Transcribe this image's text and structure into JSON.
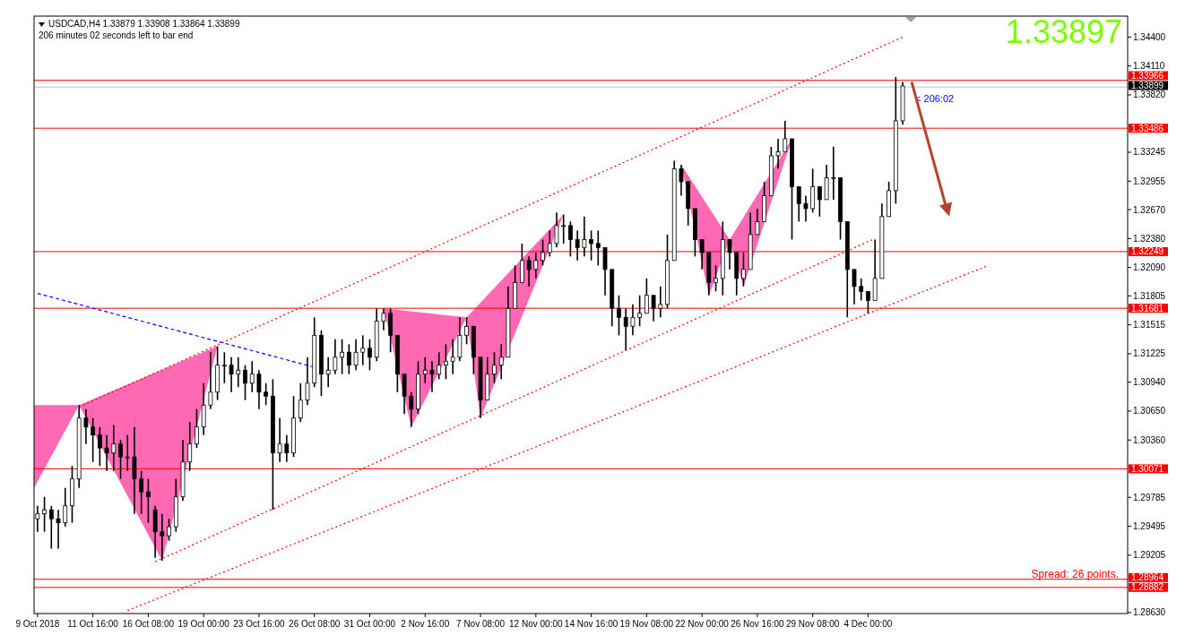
{
  "chart_data": {
    "type": "candlestick",
    "title": "USDCAD,H4  1.33879 1.33908 1.33864 1.33899",
    "subtitle": "206 minutes 02 seconds left to bar end",
    "annotations": [
      "1.33897",
      "< 206:02",
      "Spread: 26 points."
    ],
    "categories": [
      "9 Oct 2018",
      null,
      null,
      null,
      null,
      null,
      null,
      null,
      "11 Oct 16:00",
      null,
      null,
      null,
      null,
      null,
      null,
      null,
      "16 Oct 08:00",
      null,
      null,
      null,
      null,
      null,
      null,
      null,
      "19 Oct 00:00",
      null,
      null,
      null,
      null,
      null,
      null,
      null,
      "23 Oct 16:00",
      null,
      null,
      null,
      null,
      null,
      null,
      null,
      "26 Oct 08:00",
      null,
      null,
      null,
      null,
      null,
      null,
      null,
      "31 Oct 00:00",
      null,
      null,
      null,
      null,
      null,
      null,
      null,
      "2 Nov 16:00",
      null,
      null,
      null,
      null,
      null,
      null,
      null,
      "7 Nov 08:00",
      null,
      null,
      null,
      null,
      null,
      null,
      null,
      "12 Nov 00:00",
      null,
      null,
      null,
      null,
      null,
      null,
      null,
      "14 Nov 16:00",
      null,
      null,
      null,
      null,
      null,
      null,
      null,
      "19 Nov 08:00",
      null,
      null,
      null,
      null,
      null,
      null,
      null,
      "22 Nov 00:00",
      null,
      null,
      null,
      null,
      null,
      null,
      null,
      "26 Nov 16:00",
      null,
      null,
      null,
      null,
      null,
      null,
      null,
      "29 Nov 08:00",
      null,
      null,
      null,
      null,
      null,
      null,
      null,
      "4 Dec 00:00",
      null,
      null,
      null,
      null,
      null,
      null,
      null,
      null,
      null,
      null,
      null,
      null,
      null,
      null,
      null,
      null,
      null,
      null,
      null,
      null,
      null,
      null,
      null,
      null,
      null,
      null,
      null,
      null,
      null,
      null,
      null,
      null,
      null,
      null,
      null,
      null,
      null
    ],
    "ohlc": [
      [
        1.2957,
        1.297,
        1.2944,
        1.2962
      ],
      [
        1.2962,
        1.2979,
        1.2944,
        1.2966
      ],
      [
        1.2966,
        1.297,
        1.2927,
        1.2957
      ],
      [
        1.2957,
        1.2966,
        1.2927,
        1.2953
      ],
      [
        1.2953,
        1.2988,
        1.2949,
        1.297
      ],
      [
        1.297,
        1.301,
        1.2953,
        1.2997
      ],
      [
        1.2997,
        1.3071,
        1.2988,
        1.3058
      ],
      [
        1.3058,
        1.3067,
        1.3032,
        1.3049
      ],
      [
        1.3049,
        1.3058,
        1.3014,
        1.3041
      ],
      [
        1.3041,
        1.3049,
        1.301,
        1.3028
      ],
      [
        1.3028,
        1.3041,
        1.3005,
        1.3023
      ],
      [
        1.3023,
        1.3051,
        1.3005,
        1.3032
      ],
      [
        1.3032,
        1.3036,
        1.2997,
        1.3019
      ],
      [
        1.3019,
        1.3041,
        1.3005,
        1.3019
      ],
      [
        1.3019,
        1.3049,
        1.2962,
        1.2997
      ],
      [
        1.2997,
        1.3005,
        1.2962,
        1.2984
      ],
      [
        1.2984,
        1.2997,
        1.2953,
        1.2979
      ],
      [
        1.2966,
        1.297,
        1.2918,
        1.2944
      ],
      [
        1.2944,
        1.2962,
        1.2915,
        1.294
      ],
      [
        1.294,
        1.2957,
        1.2935,
        1.2949
      ],
      [
        1.2949,
        1.2997,
        1.2944,
        1.2979
      ],
      [
        1.2979,
        1.3036,
        1.2975,
        1.3014
      ],
      [
        1.3014,
        1.3054,
        1.3005,
        1.3032
      ],
      [
        1.3032,
        1.3067,
        1.3028,
        1.3049
      ],
      [
        1.3049,
        1.3093,
        1.3041,
        1.3071
      ],
      [
        1.3071,
        1.3124,
        1.3067,
        1.3084
      ],
      [
        1.3084,
        1.313,
        1.3076,
        1.3111
      ],
      [
        1.3111,
        1.3124,
        1.3093,
        1.3111
      ],
      [
        1.3111,
        1.3119,
        1.3084,
        1.3102
      ],
      [
        1.3102,
        1.3119,
        1.3089,
        1.3106
      ],
      [
        1.3106,
        1.3111,
        1.3076,
        1.3093
      ],
      [
        1.3093,
        1.3115,
        1.3084,
        1.3102
      ],
      [
        1.3102,
        1.3106,
        1.3067,
        1.3084
      ],
      [
        1.3084,
        1.3093,
        1.3071,
        1.308
      ],
      [
        1.308,
        1.3097,
        1.2966,
        1.3023
      ],
      [
        1.3023,
        1.3058,
        1.3014,
        1.3032
      ],
      [
        1.3032,
        1.3041,
        1.3014,
        1.3023
      ],
      [
        1.3023,
        1.308,
        1.3019,
        1.3058
      ],
      [
        1.3058,
        1.3093,
        1.3054,
        1.3076
      ],
      [
        1.3076,
        1.3119,
        1.3071,
        1.3093
      ],
      [
        1.3093,
        1.3159,
        1.3089,
        1.3141
      ],
      [
        1.3141,
        1.3146,
        1.308,
        1.3102
      ],
      [
        1.3102,
        1.3119,
        1.3089,
        1.3106
      ],
      [
        1.3106,
        1.3137,
        1.3102,
        1.3119
      ],
      [
        1.3119,
        1.3137,
        1.3102,
        1.3124
      ],
      [
        1.3124,
        1.3132,
        1.3102,
        1.3111
      ],
      [
        1.3111,
        1.3137,
        1.3106,
        1.3124
      ],
      [
        1.3124,
        1.3141,
        1.3111,
        1.3128
      ],
      [
        1.3128,
        1.3137,
        1.3106,
        1.3119
      ],
      [
        1.3119,
        1.3168,
        1.3115,
        1.3155
      ],
      [
        1.3155,
        1.3168,
        1.3146,
        1.3163
      ],
      [
        1.3163,
        1.3168,
        1.3124,
        1.3141
      ],
      [
        1.3141,
        1.3141,
        1.3084,
        1.3102
      ],
      [
        1.3102,
        1.3102,
        1.3062,
        1.308
      ],
      [
        1.308,
        1.3084,
        1.3049,
        1.3067
      ],
      [
        1.3067,
        1.3115,
        1.3062,
        1.3102
      ],
      [
        1.3102,
        1.3119,
        1.3093,
        1.3106
      ],
      [
        1.3106,
        1.3115,
        1.3084,
        1.3102
      ],
      [
        1.3102,
        1.3124,
        1.3097,
        1.3111
      ],
      [
        1.3111,
        1.3132,
        1.3097,
        1.3115
      ],
      [
        1.3115,
        1.3137,
        1.3102,
        1.3119
      ],
      [
        1.3119,
        1.3159,
        1.3115,
        1.3141
      ],
      [
        1.3141,
        1.3159,
        1.3132,
        1.315
      ],
      [
        1.315,
        1.315,
        1.3102,
        1.3119
      ],
      [
        1.3119,
        1.3119,
        1.3058,
        1.3076
      ],
      [
        1.3076,
        1.3119,
        1.3076,
        1.3102
      ],
      [
        1.3102,
        1.3124,
        1.3093,
        1.3111
      ],
      [
        1.3111,
        1.3132,
        1.3097,
        1.3119
      ],
      [
        1.3119,
        1.319,
        1.3119,
        1.3168
      ],
      [
        1.3168,
        1.3211,
        1.3168,
        1.3194
      ],
      [
        1.3194,
        1.3233,
        1.3194,
        1.3216
      ],
      [
        1.3216,
        1.322,
        1.319,
        1.3207
      ],
      [
        1.3207,
        1.3224,
        1.3198,
        1.3216
      ],
      [
        1.3216,
        1.3237,
        1.3211,
        1.3224
      ],
      [
        1.3224,
        1.3246,
        1.322,
        1.3233
      ],
      [
        1.3233,
        1.3264,
        1.3229,
        1.3251
      ],
      [
        1.3251,
        1.3262,
        1.3233,
        1.3251
      ],
      [
        1.3251,
        1.3255,
        1.322,
        1.3237
      ],
      [
        1.3237,
        1.3246,
        1.3216,
        1.3229
      ],
      [
        1.3229,
        1.326,
        1.322,
        1.3237
      ],
      [
        1.3237,
        1.3246,
        1.3216,
        1.3233
      ],
      [
        1.3233,
        1.3246,
        1.3211,
        1.3229
      ],
      [
        1.3229,
        1.3229,
        1.3181,
        1.3207
      ],
      [
        1.3207,
        1.3207,
        1.315,
        1.3168
      ],
      [
        1.3168,
        1.3181,
        1.3141,
        1.3159
      ],
      [
        1.3159,
        1.3168,
        1.3126,
        1.315
      ],
      [
        1.315,
        1.3172,
        1.3141,
        1.3159
      ],
      [
        1.3159,
        1.3181,
        1.315,
        1.3163
      ],
      [
        1.3163,
        1.3198,
        1.3163,
        1.3181
      ],
      [
        1.3181,
        1.3181,
        1.3155,
        1.3168
      ],
      [
        1.3168,
        1.319,
        1.3159,
        1.3172
      ],
      [
        1.3172,
        1.3242,
        1.3168,
        1.3216
      ],
      [
        1.3216,
        1.3316,
        1.3216,
        1.3308
      ],
      [
        1.3308,
        1.3312,
        1.3281,
        1.3295
      ],
      [
        1.3295,
        1.3295,
        1.3251,
        1.3268
      ],
      [
        1.3268,
        1.3268,
        1.322,
        1.3237
      ],
      [
        1.3237,
        1.3237,
        1.3207,
        1.3224
      ],
      [
        1.3224,
        1.3224,
        1.3181,
        1.3194
      ],
      [
        1.3194,
        1.3211,
        1.3185,
        1.3198
      ],
      [
        1.3198,
        1.3255,
        1.3181,
        1.3237
      ],
      [
        1.3237,
        1.3237,
        1.3207,
        1.3224
      ],
      [
        1.3224,
        1.3224,
        1.3181,
        1.3198
      ],
      [
        1.3198,
        1.3224,
        1.319,
        1.3207
      ],
      [
        1.3207,
        1.3264,
        1.3207,
        1.3242
      ],
      [
        1.3242,
        1.3268,
        1.3242,
        1.3255
      ],
      [
        1.3255,
        1.3295,
        1.3255,
        1.3281
      ],
      [
        1.3281,
        1.333,
        1.3281,
        1.3321
      ],
      [
        1.3321,
        1.3338,
        1.3308,
        1.3325
      ],
      [
        1.3325,
        1.3356,
        1.3325,
        1.3338
      ],
      [
        1.3338,
        1.3338,
        1.3237,
        1.329
      ],
      [
        1.329,
        1.329,
        1.3255,
        1.3273
      ],
      [
        1.3273,
        1.3281,
        1.3255,
        1.3268
      ],
      [
        1.3268,
        1.3308,
        1.3264,
        1.329
      ],
      [
        1.329,
        1.329,
        1.326,
        1.3277
      ],
      [
        1.3277,
        1.3312,
        1.3277,
        1.3299
      ],
      [
        1.3299,
        1.333,
        1.3277,
        1.3299
      ],
      [
        1.3299,
        1.3299,
        1.3237,
        1.3255
      ],
      [
        1.3255,
        1.3255,
        1.3159,
        1.3207
      ],
      [
        1.3207,
        1.3207,
        1.3172,
        1.319
      ],
      [
        1.319,
        1.3198,
        1.3176,
        1.3185
      ],
      [
        1.3185,
        1.3185,
        1.3163,
        1.3176
      ],
      [
        1.3176,
        1.3237,
        1.3176,
        1.3198
      ],
      [
        1.3198,
        1.3273,
        1.3198,
        1.326
      ],
      [
        1.326,
        1.3295,
        1.326,
        1.3286
      ],
      [
        1.3286,
        1.34,
        1.3273,
        1.3356
      ],
      [
        1.3356,
        1.3395,
        1.3352,
        1.3391
      ],
      null,
      null,
      null,
      null,
      null,
      null,
      null,
      null,
      null,
      null,
      null,
      null,
      null,
      null,
      null,
      null,
      null,
      null,
      null,
      null,
      null,
      null,
      null,
      null,
      null,
      null,
      null,
      null,
      null,
      null,
      null,
      null
    ],
    "series": [
      {
        "type": "line",
        "color": "#ff0000",
        "line_style": "dotted",
        "values": [
          null,
          null,
          null,
          null,
          null,
          null,
          1.3069,
          null,
          null,
          null,
          null,
          null,
          null,
          null,
          null,
          null,
          null,
          null,
          null,
          null,
          null,
          null,
          null,
          null,
          null,
          null,
          null,
          null,
          null,
          null,
          null,
          null,
          null,
          null,
          null,
          null,
          null,
          null,
          null,
          null,
          null,
          null,
          null,
          null,
          null,
          null,
          null,
          null,
          null,
          null,
          null,
          null,
          null,
          null,
          null,
          null,
          null,
          null,
          null,
          null,
          null,
          null,
          null,
          null,
          null,
          null,
          null,
          null,
          null,
          null,
          null,
          null,
          null,
          null,
          null,
          null,
          null,
          null,
          null,
          null,
          null,
          null,
          null,
          null,
          null,
          null,
          null,
          null,
          null,
          null,
          null,
          null,
          null,
          null,
          null,
          null,
          null,
          null,
          null,
          null,
          null,
          null,
          null,
          null,
          null,
          null,
          null,
          null,
          null,
          null,
          null,
          null,
          null,
          null,
          null,
          null,
          null,
          null,
          null,
          null,
          null,
          null,
          null,
          null,
          null,
          1.344,
          null,
          null,
          null,
          null,
          null,
          null,
          null,
          null,
          null,
          null,
          null,
          null,
          null,
          null,
          null,
          null,
          null,
          null,
          null,
          null,
          null,
          null,
          null,
          null,
          null,
          null,
          null,
          null,
          null,
          null,
          null,
          null
        ]
      },
      {
        "type": "line",
        "color": "#ff0000",
        "line_style": "dotted",
        "values": [
          null,
          null,
          null,
          null,
          null,
          null,
          null,
          null,
          null,
          null,
          null,
          null,
          null,
          null,
          null,
          null,
          null,
          1.2914,
          null,
          null,
          null,
          null,
          null,
          null,
          null,
          null,
          null,
          null,
          null,
          null,
          null,
          null,
          null,
          null,
          null,
          null,
          null,
          null,
          null,
          null,
          null,
          null,
          null,
          null,
          null,
          null,
          null,
          null,
          null,
          null,
          null,
          null,
          null,
          null,
          null,
          null,
          null,
          null,
          null,
          null,
          null,
          null,
          null,
          null,
          null,
          null,
          null,
          null,
          null,
          null,
          null,
          null,
          null,
          null,
          null,
          null,
          null,
          null,
          null,
          null,
          null,
          null,
          null,
          null,
          null,
          null,
          null,
          null,
          null,
          null,
          null,
          null,
          null,
          null,
          null,
          null,
          null,
          null,
          null,
          null,
          null,
          null,
          null,
          null,
          null,
          null,
          null,
          null,
          null,
          null,
          null,
          null,
          null,
          null,
          null,
          null,
          null,
          null,
          null,
          null,
          null,
          1.3238,
          null,
          null,
          null,
          null,
          null,
          null,
          null,
          null,
          null,
          null,
          null,
          null,
          null,
          null,
          null,
          null,
          null,
          null,
          null,
          null,
          null,
          null,
          null,
          null,
          null,
          null,
          null,
          null,
          null,
          null,
          null,
          null,
          null,
          null,
          null,
          null
        ]
      },
      {
        "type": "line",
        "color": "#ff0000",
        "line_style": "dotted",
        "values": [
          null,
          null,
          null,
          null,
          null,
          null,
          null,
          null,
          null,
          null,
          null,
          null,
          null,
          1.2865,
          null,
          null,
          null,
          null,
          null,
          null,
          null,
          null,
          null,
          null,
          null,
          null,
          null,
          null,
          null,
          null,
          null,
          null,
          null,
          null,
          null,
          null,
          null,
          null,
          null,
          null,
          null,
          null,
          null,
          null,
          null,
          null,
          null,
          null,
          null,
          null,
          null,
          null,
          null,
          null,
          null,
          null,
          null,
          null,
          null,
          null,
          null,
          null,
          null,
          null,
          null,
          null,
          null,
          null,
          null,
          null,
          null,
          null,
          null,
          null,
          null,
          null,
          null,
          null,
          null,
          null,
          null,
          null,
          null,
          null,
          null,
          null,
          null,
          null,
          null,
          null,
          null,
          null,
          null,
          null,
          null,
          null,
          null,
          null,
          null,
          null,
          null,
          null,
          null,
          null,
          null,
          null,
          null,
          null,
          null,
          null,
          null,
          null,
          null,
          null,
          null,
          null,
          null,
          null,
          null,
          null,
          null,
          null,
          null,
          null,
          null,
          null,
          null,
          null,
          null,
          null,
          null,
          null,
          null,
          null,
          null,
          null,
          null,
          1.321,
          null,
          null,
          null,
          null,
          null,
          null,
          null,
          null,
          null,
          null,
          null,
          null,
          null,
          null,
          null,
          null,
          null,
          null,
          null,
          null
        ]
      },
      {
        "type": "line",
        "color": "#0000ff",
        "line_style": "dashed",
        "values": [
          1.3183,
          null,
          null,
          null,
          null,
          null,
          null,
          null,
          null,
          null,
          null,
          null,
          null,
          null,
          null,
          null,
          null,
          null,
          null,
          null,
          null,
          null,
          null,
          null,
          null,
          null,
          null,
          null,
          null,
          null,
          null,
          null,
          null,
          null,
          null,
          null,
          null,
          null,
          null,
          null,
          1.3109,
          null,
          null,
          null,
          null,
          null,
          null,
          null,
          null,
          null,
          null,
          null,
          null,
          null,
          null,
          null,
          null,
          null,
          null,
          null,
          null,
          null,
          null,
          null,
          null,
          null,
          null,
          null,
          null,
          null,
          null,
          null,
          null,
          null,
          null,
          null,
          null,
          null,
          null,
          null,
          null,
          null,
          null,
          null,
          null,
          null,
          null,
          null,
          null,
          null,
          null,
          null,
          null,
          null,
          null,
          null,
          null,
          null,
          null,
          null,
          null,
          null,
          null,
          null,
          null,
          null,
          null,
          null,
          null,
          null,
          null,
          null,
          null,
          null,
          null,
          null,
          null,
          null,
          null,
          null,
          null,
          null,
          null,
          null,
          null,
          null,
          null,
          null,
          null,
          null,
          null,
          null,
          null,
          null,
          null,
          null,
          null,
          null,
          null,
          null,
          null,
          null,
          null,
          null,
          null,
          null,
          null,
          null,
          null,
          null,
          null,
          null,
          null,
          null,
          null,
          null,
          null,
          null
        ]
      }
    ],
    "ylim": [
      1.2862,
      1.3461
    ],
    "yticks": [
      {
        "value": 1.2863,
        "label": "1.28630"
      },
      {
        "value": 1.29205,
        "label": "1.29205"
      },
      {
        "value": 1.29495,
        "label": "1.29495"
      },
      {
        "value": 1.29785,
        "label": "1.29785"
      },
      {
        "value": 1.3036,
        "label": "1.30360"
      },
      {
        "value": 1.3065,
        "label": "1.30650"
      },
      {
        "value": 1.3094,
        "label": "1.30940"
      },
      {
        "value": 1.31225,
        "label": "1.31225"
      },
      {
        "value": 1.31515,
        "label": "1.31515"
      },
      {
        "value": 1.31805,
        "label": "1.31805"
      },
      {
        "value": 1.3209,
        "label": "1.32090"
      },
      {
        "value": 1.3238,
        "label": "1.32380"
      },
      {
        "value": 1.3267,
        "label": "1.32670"
      },
      {
        "value": 1.32955,
        "label": "1.32955"
      },
      {
        "value": 1.33245,
        "label": "1.33245"
      },
      {
        "value": 1.3382,
        "label": "1.33820"
      },
      {
        "value": 1.3411,
        "label": "1.34110"
      },
      {
        "value": 1.344,
        "label": "1.34400"
      }
    ],
    "ref_lines": [
      {
        "axis": "y",
        "value": 1.33966,
        "label": "1.33966",
        "color": "#ff0000"
      },
      {
        "axis": "y",
        "value": 1.33899,
        "label": "1.33899",
        "color": "#c0c0c0"
      },
      {
        "axis": "y",
        "value": 1.33486,
        "label": "1.33486",
        "color": "#ff0000"
      },
      {
        "axis": "y",
        "value": 1.32249,
        "label": "1.32249",
        "color": "#ff0000"
      },
      {
        "axis": "y",
        "value": 1.31681,
        "label": "1.31681",
        "color": "#ff0000"
      },
      {
        "axis": "y",
        "value": 1.30071,
        "label": "1.30071",
        "color": "#ff0000"
      },
      {
        "axis": "y",
        "value": 1.28964,
        "label": "1.28964",
        "color": "#ff0000"
      },
      {
        "axis": "y",
        "value": 1.28882,
        "label": "1.28882",
        "color": "#ff0000"
      }
    ]
  }
}
